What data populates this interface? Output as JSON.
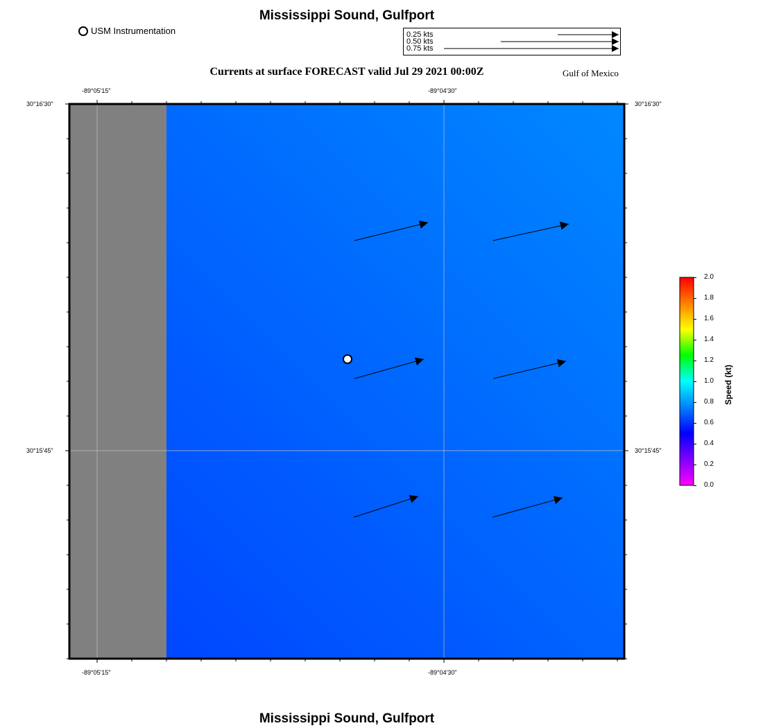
{
  "header": {
    "title": "Mississippi Sound, Gulfport",
    "subtitle": "Currents at surface FORECAST valid Jul 29 2021 00:00Z",
    "region": "Gulf of Mexico"
  },
  "footer": {
    "title": "Mississippi Sound, Gulfport"
  },
  "legend": {
    "station_label": "USM Instrumentation"
  },
  "scale": {
    "items": [
      "0.25 kts",
      "0.50 kts",
      "0.75 kts"
    ]
  },
  "axes": {
    "lon_ticks": [
      "-89°05'15\"",
      "-89°04'30\""
    ],
    "lat_ticks": [
      "30°16'30\"",
      "30°15'45\""
    ]
  },
  "colorbar": {
    "title": "Speed (kt)",
    "ticks": [
      "0.0",
      "0.2",
      "0.4",
      "0.6",
      "0.8",
      "1.0",
      "1.2",
      "1.4",
      "1.6",
      "1.8",
      "2.0"
    ],
    "colors": [
      "#ff00ff",
      "#8000ff",
      "#0000ff",
      "#0080ff",
      "#00ffff",
      "#00ff00",
      "#ffff00",
      "#ff8000",
      "#ff0000"
    ]
  },
  "map": {
    "land_color": "#808080",
    "water_colors": [
      "#0040ff",
      "#0088ff"
    ]
  }
}
